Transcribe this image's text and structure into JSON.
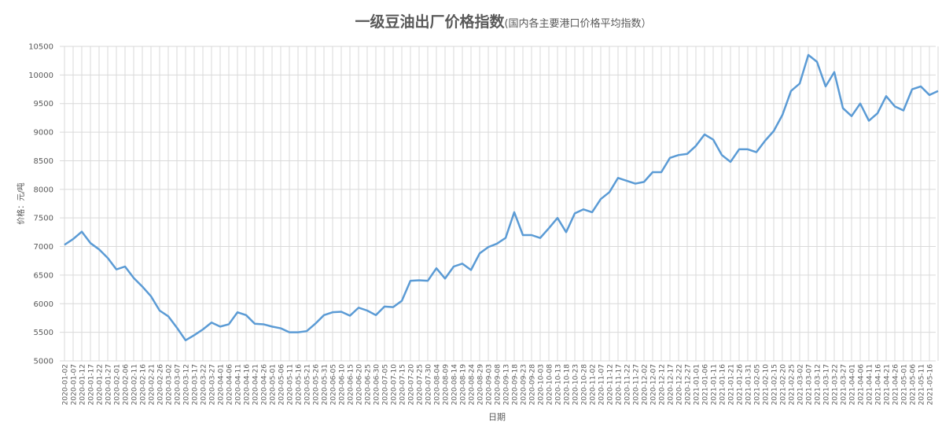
{
  "chart_data": {
    "type": "line",
    "title": "一级豆油出厂价格指数",
    "subtitle": "(国内各主要港口价格平均指数）",
    "x_label": "日期",
    "y_label": "价格：元/吨",
    "categories": [
      "2020-01-02",
      "2020-01-07",
      "2020-01-12",
      "2020-01-17",
      "2020-01-22",
      "2020-01-27",
      "2020-02-01",
      "2020-02-06",
      "2020-02-11",
      "2020-02-16",
      "2020-02-21",
      "2020-02-26",
      "2020-03-02",
      "2020-03-07",
      "2020-03-12",
      "2020-03-17",
      "2020-03-22",
      "2020-03-27",
      "2020-04-01",
      "2020-04-06",
      "2020-04-11",
      "2020-04-16",
      "2020-04-21",
      "2020-04-26",
      "2020-05-01",
      "2020-05-06",
      "2020-05-11",
      "2020-05-16",
      "2020-05-21",
      "2020-05-26",
      "2020-05-31",
      "2020-06-05",
      "2020-06-10",
      "2020-06-15",
      "2020-06-20",
      "2020-06-25",
      "2020-06-30",
      "2020-07-05",
      "2020-07-10",
      "2020-07-15",
      "2020-07-20",
      "2020-07-25",
      "2020-07-30",
      "2020-08-04",
      "2020-08-09",
      "2020-08-14",
      "2020-08-19",
      "2020-08-24",
      "2020-08-29",
      "2020-09-03",
      "2020-09-08",
      "2020-09-13",
      "2020-09-18",
      "2020-09-23",
      "2020-09-28",
      "2020-10-03",
      "2020-10-08",
      "2020-10-13",
      "2020-10-18",
      "2020-10-23",
      "2020-10-28",
      "2020-11-02",
      "2020-11-07",
      "2020-11-12",
      "2020-11-17",
      "2020-11-22",
      "2020-11-27",
      "2020-12-02",
      "2020-12-07",
      "2020-12-12",
      "2020-12-17",
      "2020-12-22",
      "2020-12-27",
      "2021-01-01",
      "2021-01-06",
      "2021-01-11",
      "2021-01-16",
      "2021-01-21",
      "2021-01-26",
      "2021-01-31",
      "2021-02-05",
      "2021-02-10",
      "2021-02-15",
      "2021-02-20",
      "2021-02-25",
      "2021-03-02",
      "2021-03-07",
      "2021-03-12",
      "2021-03-17",
      "2021-03-22",
      "2021-03-27",
      "2021-04-01",
      "2021-04-06",
      "2021-04-11",
      "2021-04-16",
      "2021-04-21",
      "2021-04-26",
      "2021-05-01",
      "2021-05-06",
      "2021-05-11",
      "2021-05-16",
      null
    ],
    "values": [
      7030,
      7130,
      7260,
      7060,
      6950,
      6800,
      6600,
      6650,
      6450,
      6300,
      6130,
      5880,
      5780,
      5580,
      5360,
      5450,
      5550,
      5670,
      5600,
      5640,
      5850,
      5800,
      5650,
      5640,
      5600,
      5570,
      5500,
      5500,
      5520,
      5650,
      5800,
      5850,
      5860,
      5790,
      5930,
      5880,
      5800,
      5950,
      5940,
      6050,
      6400,
      6410,
      6400,
      6620,
      6440,
      6650,
      6700,
      6590,
      6880,
      6990,
      7050,
      7150,
      7600,
      7200,
      7200,
      7150,
      7320,
      7500,
      7250,
      7580,
      7650,
      7600,
      7830,
      7950,
      8200,
      8150,
      8100,
      8130,
      8300,
      8300,
      8550,
      8600,
      8620,
      8760,
      8960,
      8870,
      8600,
      8480,
      8700,
      8700,
      8650,
      8850,
      9020,
      9300,
      9720,
      9850,
      10350,
      10230,
      9800,
      10050,
      9420,
      9280,
      9500,
      9200,
      9330,
      9630,
      9450,
      9380,
      9750,
      9800,
      9650,
      9720
    ],
    "color": "#5b9bd5",
    "ylim": [
      5000,
      10500
    ],
    "yticks": [
      5000,
      5500,
      6000,
      6500,
      7000,
      7500,
      8000,
      8500,
      9000,
      9500,
      10000,
      10500
    ],
    "grid": true
  }
}
